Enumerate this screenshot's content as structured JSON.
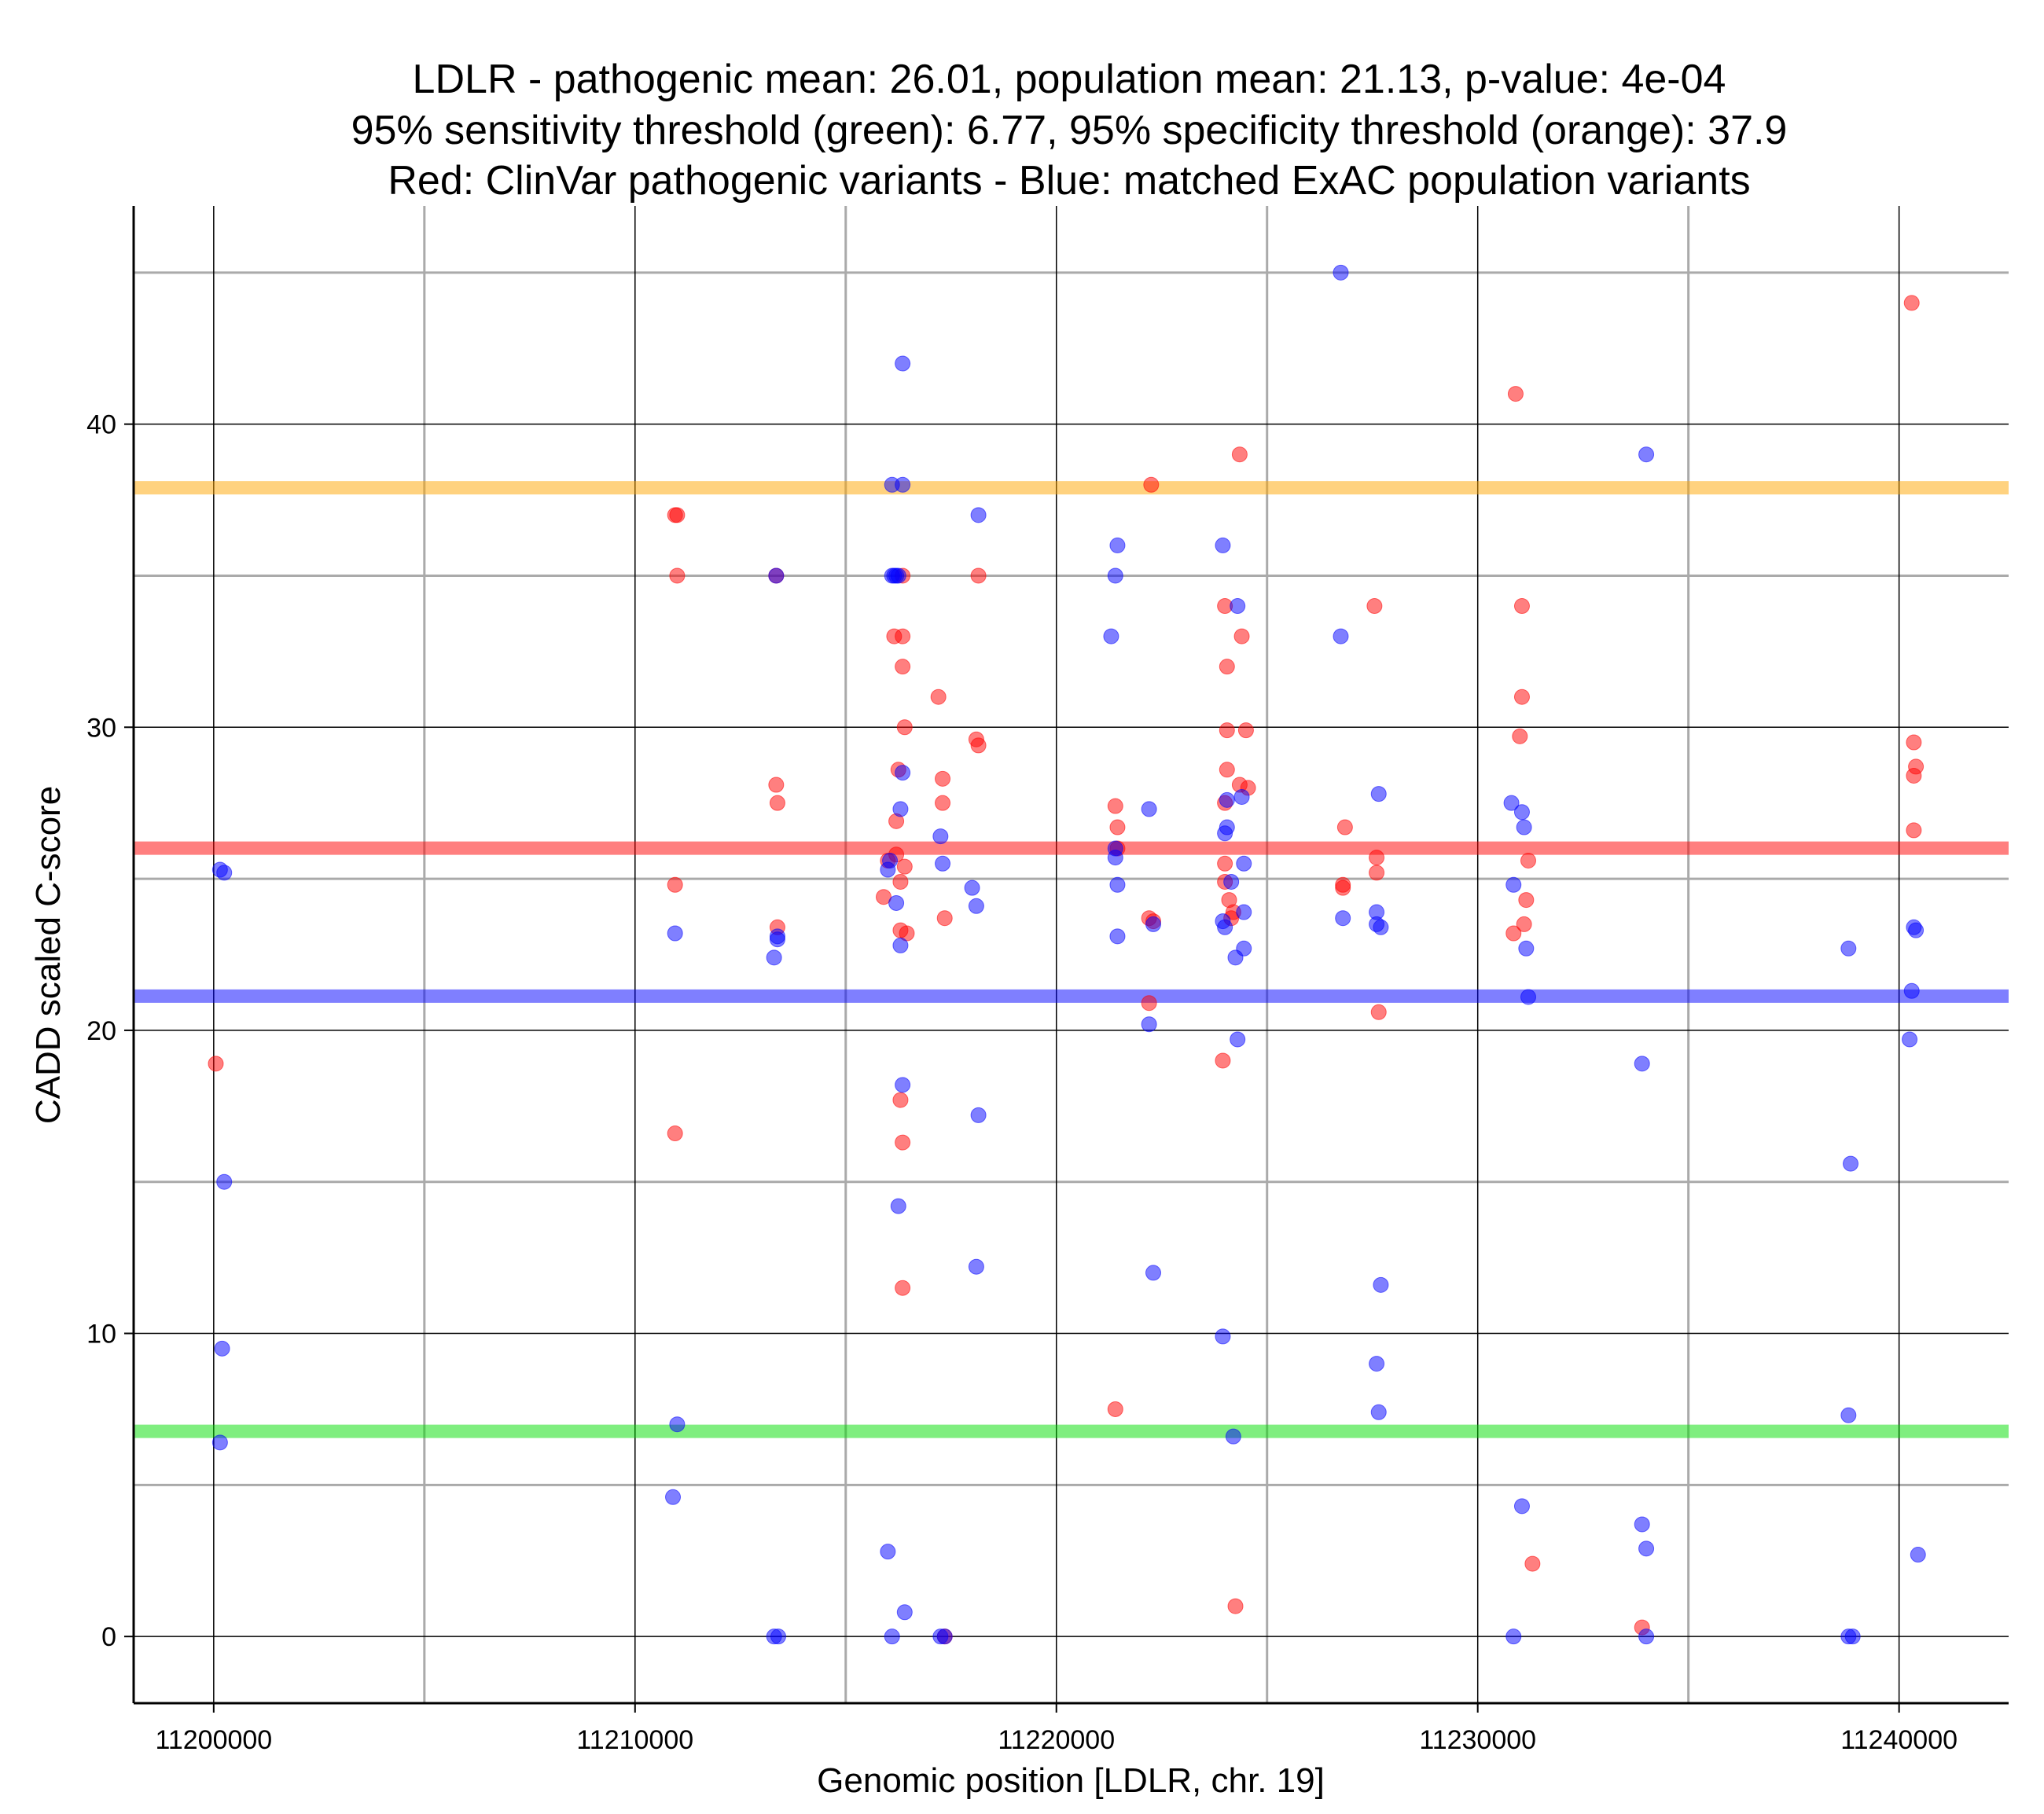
{
  "chart_data": {
    "type": "scatter",
    "title": [
      "LDLR - pathogenic mean: 26.01, population mean: 21.13, p-value: 4e-04",
      "95% sensitivity threshold (green): 6.77, 95% specificity threshold (orange): 37.9",
      "Red: ClinVar pathogenic variants - Blue: matched ExAC population variants"
    ],
    "xlabel": "Genomic position [LDLR, chr. 19]",
    "ylabel": "CADD scaled C-score",
    "xlim": [
      11198100,
      11242600
    ],
    "ylim": [
      -2.2,
      47.2
    ],
    "x_ticks": [
      11200000,
      11210000,
      11220000,
      11230000,
      11240000
    ],
    "x_tick_labels": [
      "11200000",
      "11210000",
      "11220000",
      "11230000",
      "11240000"
    ],
    "x_minor_grid": [
      11205000,
      11215000,
      11225000,
      11235000
    ],
    "y_ticks": [
      0,
      10,
      20,
      30,
      40
    ],
    "y_tick_labels": [
      "0",
      "10",
      "20",
      "30",
      "40"
    ],
    "y_minor_grid": [
      5,
      15,
      25,
      35,
      45
    ],
    "grid": true,
    "thresholds": [
      {
        "name": "specificity-threshold",
        "value": 37.9,
        "color": "#FFA500"
      },
      {
        "name": "pathogenic-mean",
        "value": 26.01,
        "color": "#FF0000"
      },
      {
        "name": "population-mean",
        "value": 21.13,
        "color": "#0000FF"
      },
      {
        "name": "sensitivity-threshold",
        "value": 6.77,
        "color": "#00DD00"
      }
    ],
    "series": [
      {
        "name": "ClinVar pathogenic variants",
        "color": "#FF0000",
        "points": [
          [
            11200050,
            18.9
          ],
          [
            11210950,
            37.0
          ],
          [
            11211000,
            37.0
          ],
          [
            11211000,
            35.0
          ],
          [
            11210950,
            24.8
          ],
          [
            11210950,
            16.6
          ],
          [
            11213350,
            35.0
          ],
          [
            11213350,
            28.1
          ],
          [
            11213380,
            27.5
          ],
          [
            11213380,
            23.4
          ],
          [
            11216150,
            33.0
          ],
          [
            11216350,
            33.0
          ],
          [
            11216350,
            35.0
          ],
          [
            11216350,
            32.0
          ],
          [
            11216400,
            30.0
          ],
          [
            11216250,
            28.6
          ],
          [
            11216200,
            26.9
          ],
          [
            11216000,
            25.6
          ],
          [
            11216200,
            25.8
          ],
          [
            11216400,
            25.4
          ],
          [
            11216300,
            24.9
          ],
          [
            11215900,
            24.4
          ],
          [
            11216300,
            23.3
          ],
          [
            11216450,
            23.2
          ],
          [
            11216300,
            17.7
          ],
          [
            11216350,
            16.3
          ],
          [
            11216350,
            11.5
          ],
          [
            11217200,
            31.0
          ],
          [
            11217300,
            28.3
          ],
          [
            11217300,
            27.5
          ],
          [
            11217350,
            23.7
          ],
          [
            11217350,
            0.0
          ],
          [
            11218150,
            35.0
          ],
          [
            11218100,
            29.6
          ],
          [
            11218150,
            29.4
          ],
          [
            11221400,
            27.4
          ],
          [
            11221450,
            26.7
          ],
          [
            11221450,
            26.0
          ],
          [
            11221400,
            7.5
          ],
          [
            11222200,
            23.7
          ],
          [
            11222300,
            23.6
          ],
          [
            11222200,
            20.9
          ],
          [
            11222250,
            38.0
          ],
          [
            11224000,
            34.0
          ],
          [
            11224050,
            32.0
          ],
          [
            11224050,
            29.9
          ],
          [
            11224050,
            28.6
          ],
          [
            11224000,
            27.5
          ],
          [
            11224000,
            25.5
          ],
          [
            11224000,
            24.9
          ],
          [
            11224100,
            24.3
          ],
          [
            11224200,
            23.9
          ],
          [
            11224150,
            23.7
          ],
          [
            11223950,
            19.0
          ],
          [
            11224350,
            39.0
          ],
          [
            11224400,
            33.0
          ],
          [
            11224350,
            28.1
          ],
          [
            11224500,
            29.9
          ],
          [
            11224550,
            28.0
          ],
          [
            11224250,
            1.0
          ],
          [
            11226850,
            26.7
          ],
          [
            11226800,
            24.8
          ],
          [
            11226800,
            24.7
          ],
          [
            11227550,
            34.0
          ],
          [
            11227600,
            25.7
          ],
          [
            11227600,
            25.2
          ],
          [
            11227650,
            20.6
          ],
          [
            11230900,
            41.0
          ],
          [
            11230850,
            23.2
          ],
          [
            11231050,
            34.0
          ],
          [
            11231050,
            31.0
          ],
          [
            11231000,
            29.7
          ],
          [
            11231200,
            25.6
          ],
          [
            11231150,
            24.3
          ],
          [
            11231100,
            23.5
          ],
          [
            11231300,
            2.4
          ],
          [
            11233900,
            0.3
          ],
          [
            11240300,
            44.0
          ],
          [
            11240350,
            29.5
          ],
          [
            11240400,
            28.7
          ],
          [
            11240350,
            28.4
          ],
          [
            11240350,
            26.6
          ]
        ]
      },
      {
        "name": "matched ExAC population variants",
        "color": "#0000FF",
        "points": [
          [
            11200150,
            25.3
          ],
          [
            11200250,
            25.2
          ],
          [
            11200250,
            15.0
          ],
          [
            11200200,
            9.5
          ],
          [
            11200150,
            6.4
          ],
          [
            11210950,
            23.2
          ],
          [
            11211000,
            7.0
          ],
          [
            11210900,
            4.6
          ],
          [
            11213350,
            35.0
          ],
          [
            11213380,
            23.1
          ],
          [
            11213380,
            23.0
          ],
          [
            11213300,
            22.4
          ],
          [
            11213300,
            0.0
          ],
          [
            11213400,
            0.0
          ],
          [
            11216350,
            42.0
          ],
          [
            11216100,
            38.0
          ],
          [
            11216350,
            38.0
          ],
          [
            11216100,
            35.0
          ],
          [
            11216150,
            35.0
          ],
          [
            11216200,
            35.0
          ],
          [
            11216250,
            35.0
          ],
          [
            11216350,
            28.5
          ],
          [
            11216300,
            27.3
          ],
          [
            11216050,
            25.6
          ],
          [
            11216000,
            25.3
          ],
          [
            11216200,
            24.2
          ],
          [
            11216300,
            22.8
          ],
          [
            11216350,
            18.2
          ],
          [
            11216250,
            14.2
          ],
          [
            11216000,
            2.8
          ],
          [
            11216100,
            0.0
          ],
          [
            11216400,
            0.8
          ],
          [
            11217250,
            26.4
          ],
          [
            11217300,
            25.5
          ],
          [
            11217350,
            0.0
          ],
          [
            11217250,
            0.0
          ],
          [
            11218150,
            37.0
          ],
          [
            11218000,
            24.7
          ],
          [
            11218100,
            24.1
          ],
          [
            11218150,
            17.2
          ],
          [
            11218100,
            12.2
          ],
          [
            11221450,
            36.0
          ],
          [
            11221400,
            35.0
          ],
          [
            11221300,
            33.0
          ],
          [
            11221400,
            26.0
          ],
          [
            11221400,
            25.7
          ],
          [
            11221450,
            24.8
          ],
          [
            11221450,
            23.1
          ],
          [
            11222200,
            27.3
          ],
          [
            11222300,
            23.5
          ],
          [
            11222200,
            20.2
          ],
          [
            11222300,
            12.0
          ],
          [
            11223950,
            36.0
          ],
          [
            11224300,
            34.0
          ],
          [
            11224400,
            27.7
          ],
          [
            11224050,
            27.6
          ],
          [
            11224000,
            26.5
          ],
          [
            11224050,
            26.7
          ],
          [
            11224450,
            25.5
          ],
          [
            11224150,
            24.9
          ],
          [
            11223950,
            23.6
          ],
          [
            11224000,
            23.4
          ],
          [
            11224450,
            23.9
          ],
          [
            11224450,
            22.7
          ],
          [
            11224250,
            22.4
          ],
          [
            11224300,
            19.7
          ],
          [
            11223950,
            9.9
          ],
          [
            11224200,
            6.6
          ],
          [
            11226750,
            45.0
          ],
          [
            11226750,
            33.0
          ],
          [
            11226800,
            23.7
          ],
          [
            11227650,
            27.8
          ],
          [
            11227600,
            23.9
          ],
          [
            11227600,
            23.5
          ],
          [
            11227700,
            23.4
          ],
          [
            11227700,
            11.6
          ],
          [
            11227600,
            9.0
          ],
          [
            11227650,
            7.4
          ],
          [
            11230800,
            27.5
          ],
          [
            11231050,
            27.2
          ],
          [
            11231100,
            26.7
          ],
          [
            11230850,
            24.8
          ],
          [
            11231150,
            22.7
          ],
          [
            11231200,
            21.1
          ],
          [
            11231050,
            4.3
          ],
          [
            11230850,
            0.0
          ],
          [
            11234000,
            39.0
          ],
          [
            11233900,
            18.9
          ],
          [
            11233900,
            3.7
          ],
          [
            11234000,
            2.9
          ],
          [
            11234000,
            0.0
          ],
          [
            11238800,
            22.7
          ],
          [
            11238850,
            15.6
          ],
          [
            11238800,
            7.3
          ],
          [
            11238800,
            0.0
          ],
          [
            11238900,
            0.0
          ],
          [
            11240350,
            23.4
          ],
          [
            11240400,
            23.3
          ],
          [
            11240300,
            21.3
          ],
          [
            11240250,
            19.7
          ],
          [
            11240450,
            2.7
          ]
        ]
      }
    ]
  }
}
